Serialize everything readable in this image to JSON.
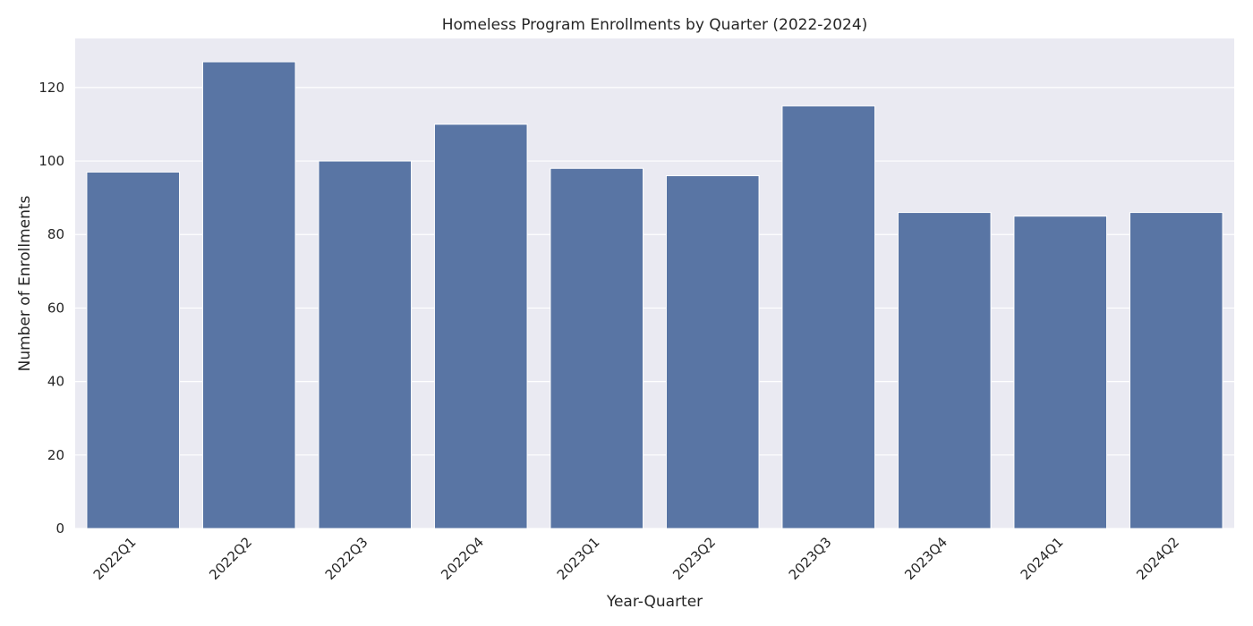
{
  "chart_data": {
    "type": "bar",
    "title": "Homeless Program Enrollments by Quarter (2022-2024)",
    "xlabel": "Year-Quarter",
    "ylabel": "Number of Enrollments",
    "categories": [
      "2022Q1",
      "2022Q2",
      "2022Q3",
      "2022Q4",
      "2023Q1",
      "2023Q2",
      "2023Q3",
      "2023Q4",
      "2024Q1",
      "2024Q2"
    ],
    "values": [
      97,
      127,
      100,
      110,
      98,
      96,
      115,
      86,
      85,
      86
    ],
    "ylim": [
      0,
      133.35
    ],
    "yticks": [
      0,
      20,
      40,
      60,
      80,
      100,
      120
    ],
    "grid": true,
    "bar_color": "#5975a4",
    "background_color": "#eaeaf2",
    "x_tick_rotation": 45
  }
}
